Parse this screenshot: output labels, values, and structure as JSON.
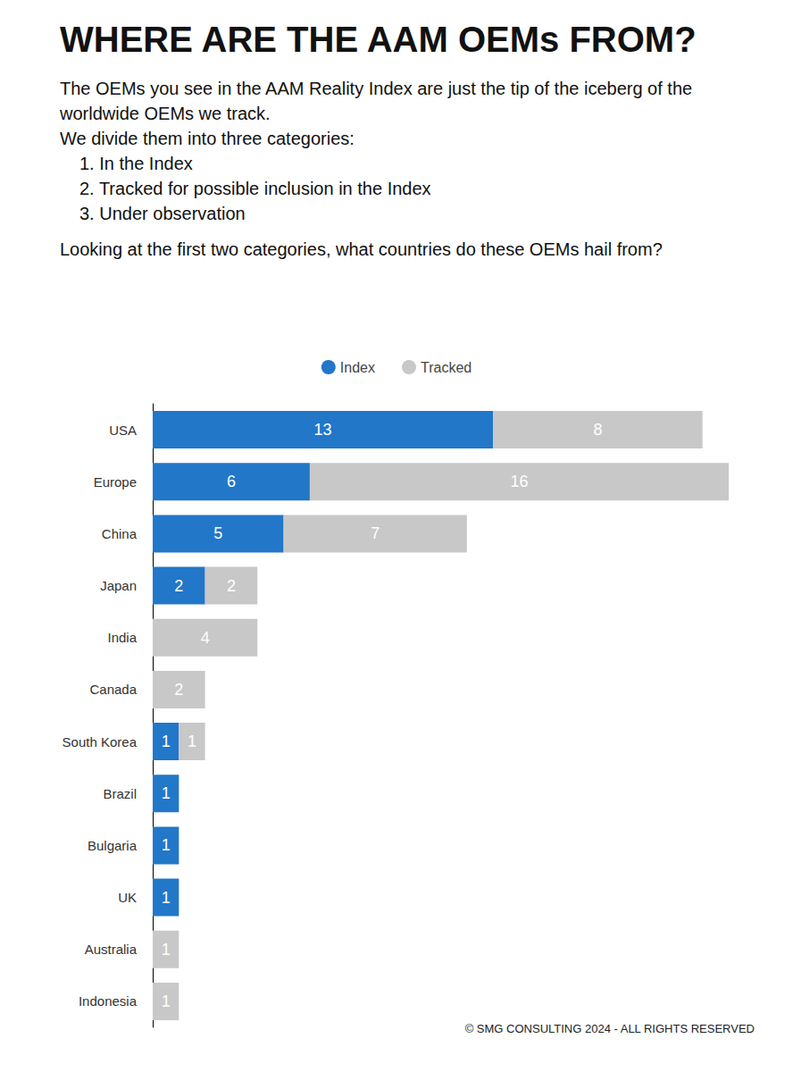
{
  "chart_data": {
    "type": "bar",
    "orientation": "horizontal",
    "stacked": true,
    "data_labels": true,
    "tick_labels": "y",
    "grid": false,
    "legend": "top",
    "title": "WHERE ARE THE AAM OEMs FROM?",
    "subtitle": "The OEMs you see in the AAM Reality Index are just the tip of the iceberg of the worldwide OEMs we track.",
    "annotations": [
      "We divide them into three categories:",
      "1. In the Index",
      "2. Tracked for possible inclusion in the Index",
      "3. Under observation",
      "Looking at the first two categories, what countries do these OEMs hail from?",
      "© SMG CONSULTING 2024 - ALL RIGHTS RESERVED"
    ],
    "categories": [
      "USA",
      "Europe",
      "China",
      "Japan",
      "India",
      "Canada",
      "South Korea",
      "Brazil",
      "Bulgaria",
      "UK",
      "Australia",
      "Indonesia"
    ],
    "xlim": [
      0,
      22
    ],
    "series": [
      {
        "name": "Index",
        "color": "#2277c8",
        "values": [
          13,
          6,
          5,
          2,
          null,
          null,
          1,
          1,
          1,
          1,
          null,
          null
        ]
      },
      {
        "name": "Tracked",
        "color": "#c8c8c8",
        "values": [
          8,
          16,
          7,
          2,
          4,
          2,
          1,
          null,
          null,
          null,
          1,
          1
        ]
      }
    ]
  }
}
